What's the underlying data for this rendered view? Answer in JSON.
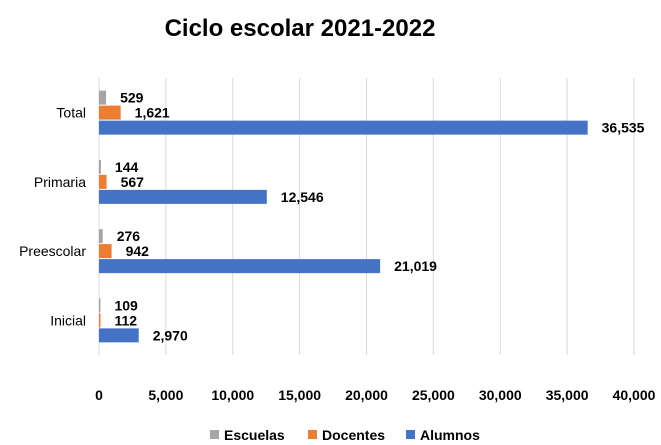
{
  "chart_data": {
    "type": "bar",
    "orientation": "horizontal",
    "title": "Ciclo escolar 2021-2022",
    "categories": [
      "Total",
      "Primaria",
      "Preescolar",
      "Inicial"
    ],
    "series": [
      {
        "name": "Escuelas",
        "color": "#a5a5a5",
        "values": [
          529,
          144,
          276,
          109
        ],
        "labels": [
          "529",
          "144",
          "276",
          "109"
        ]
      },
      {
        "name": "Docentes",
        "color": "#ed7d31",
        "values": [
          1621,
          567,
          942,
          112
        ],
        "labels": [
          "1,621",
          "567",
          "942",
          "112"
        ]
      },
      {
        "name": "Alumnos",
        "color": "#4472c4",
        "values": [
          36535,
          12546,
          21019,
          2970
        ],
        "labels": [
          "36,535",
          "12,546",
          "21,019",
          "2,970"
        ]
      }
    ],
    "xlim": [
      0,
      40000
    ],
    "xticks": [
      0,
      5000,
      10000,
      15000,
      20000,
      25000,
      30000,
      35000,
      40000
    ],
    "xtick_labels": [
      "0",
      "5,000",
      "10,000",
      "15,000",
      "20,000",
      "25,000",
      "30,000",
      "35,000",
      "40,000"
    ],
    "grid": true,
    "legend_position": "bottom"
  }
}
